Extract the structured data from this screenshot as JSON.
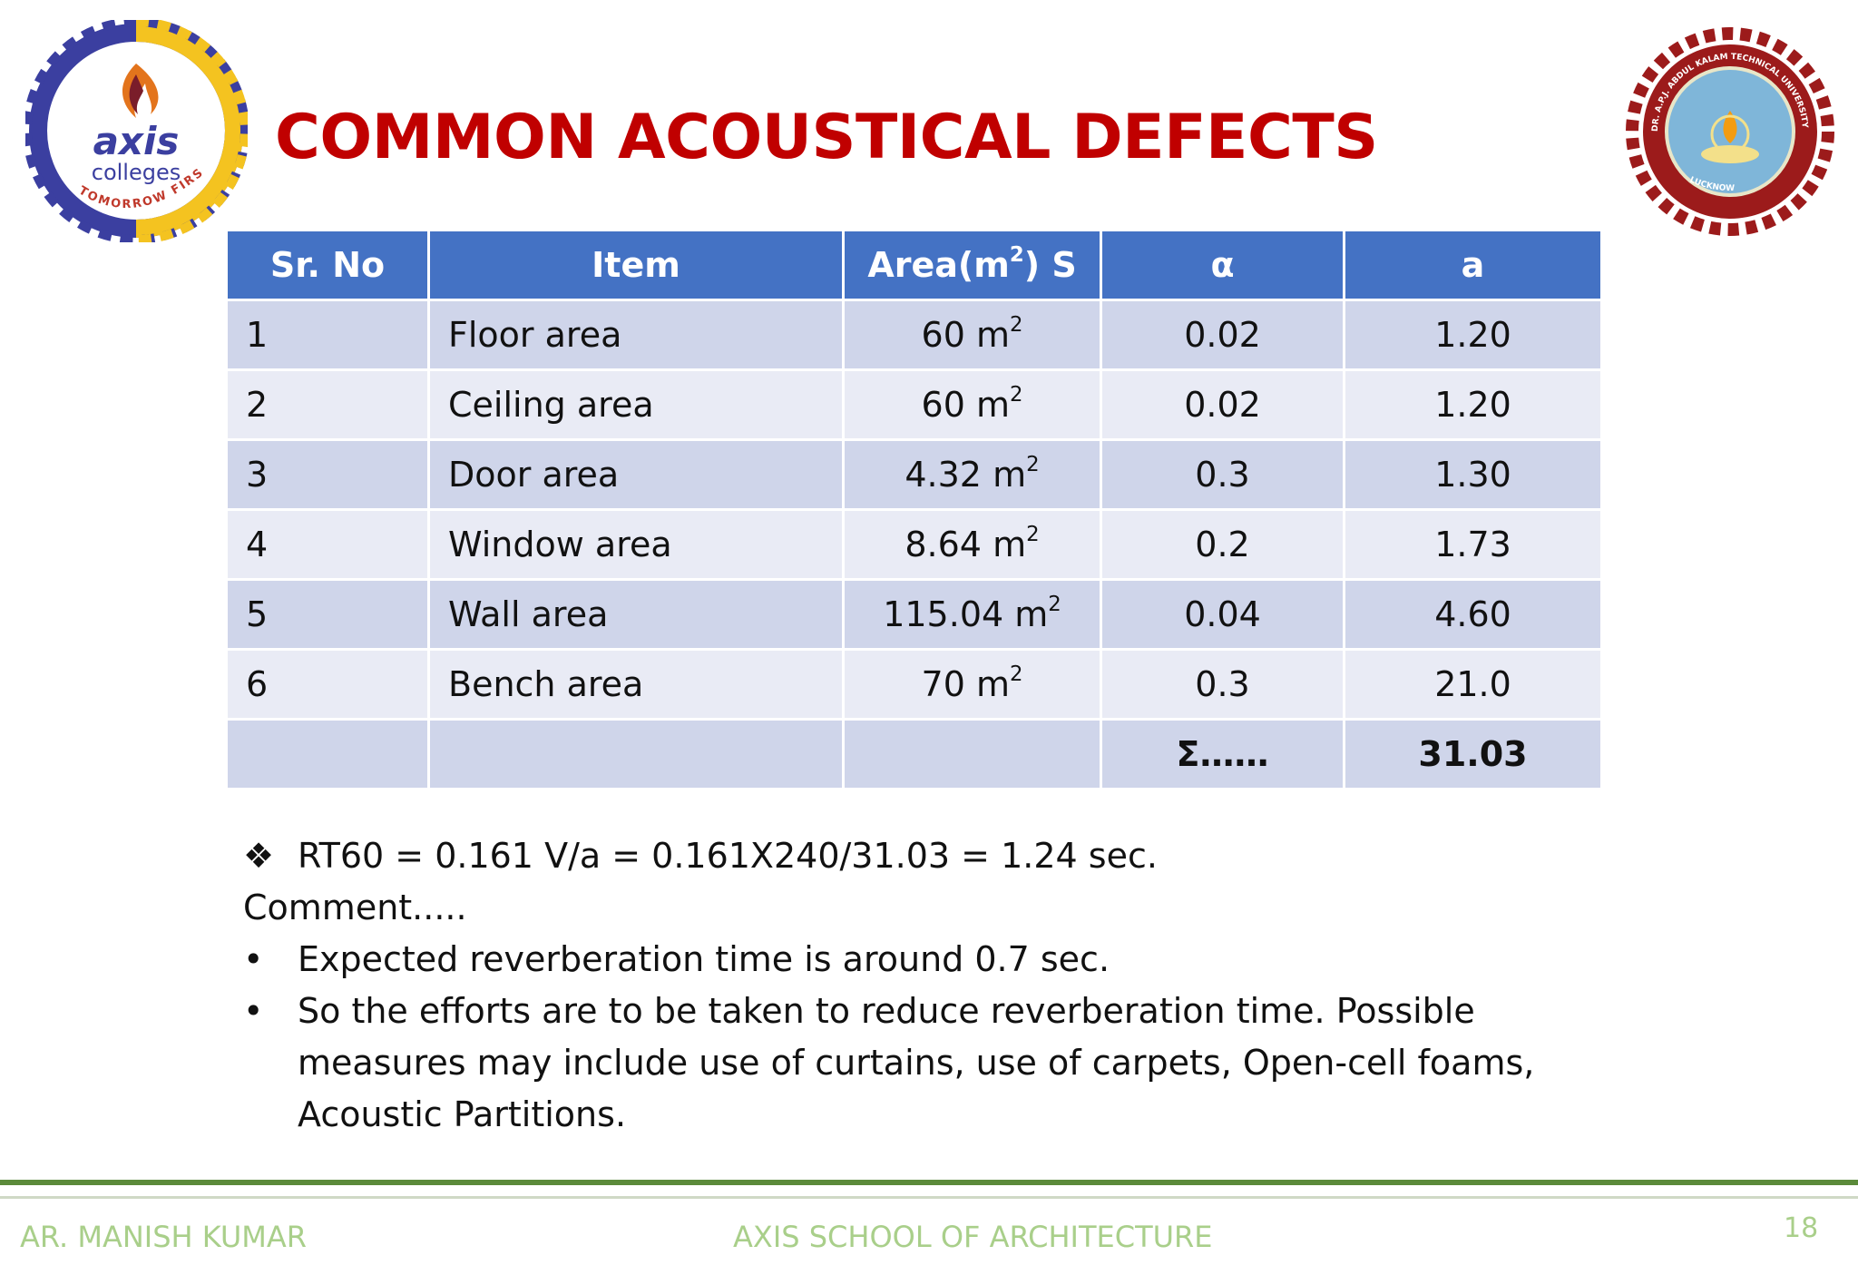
{
  "logos": {
    "left_name": "axis",
    "left_sub": "colleges",
    "left_tagline": "TOMORROW FIRST",
    "right_top_text": "DR. A.P.J. ABDUL KALAM TECHNICAL UNIVERSITY UTTAR PRADESH",
    "right_bottom_text": "LUCKNOW",
    "colors": {
      "brand_blue": "#3b3fa0",
      "brand_yellow": "#f4c320",
      "seal_red": "#9c1b1b"
    }
  },
  "title": "COMMON ACOUSTICAL DEFECTS",
  "table": {
    "headers": {
      "sr": "Sr. No",
      "item": "Item",
      "area_prefix": "Area(m",
      "area_sup": "2",
      "area_suffix": ") S",
      "alpha": "α",
      "a": "a"
    },
    "rows": [
      {
        "sr": "1",
        "item": "Floor area",
        "area": "60 m",
        "unit_sup": "2",
        "alpha": "0.02",
        "a": "1.20"
      },
      {
        "sr": "2",
        "item": "Ceiling area",
        "area": "60 m",
        "unit_sup": "2",
        "alpha": "0.02",
        "a": "1.20"
      },
      {
        "sr": "3",
        "item": "Door area",
        "area": "4.32 m",
        "unit_sup": "2",
        "alpha": "0.3",
        "a": "1.30"
      },
      {
        "sr": "4",
        "item": "Window area",
        "area": "8.64 m",
        "unit_sup": "2",
        "alpha": "0.2",
        "a": "1.73"
      },
      {
        "sr": "5",
        "item": "Wall area",
        "area": "115.04 m",
        "unit_sup": "2",
        "alpha": "0.04",
        "a": "4.60"
      },
      {
        "sr": "6",
        "item": "Bench area",
        "area": "70 m",
        "unit_sup": "2",
        "alpha": "0.3",
        "a": "21.0"
      }
    ],
    "sum_label": "Σ……",
    "sum_value": "31.03",
    "colors": {
      "header": "#4472c4",
      "row_odd": "#cfd5ea",
      "row_even": "#e9ebf5"
    }
  },
  "notes": {
    "formula_marker": "❖",
    "formula": "RT60 = 0.161 V/a = 0.161X240/31.03 = 1.24 sec.",
    "comment_label": "Comment.....",
    "bullet_marker": "•",
    "bullets": [
      "Expected reverberation time is around 0.7 sec.",
      "So the efforts are to be taken to reduce reverberation time. Possible measures may include use of curtains, use of carpets, Open-cell foams, Acoustic Partitions."
    ]
  },
  "footer": {
    "author": "AR. MANISH KUMAR",
    "school": "AXIS SCHOOL OF ARCHITECTURE",
    "page": "18",
    "color": "#a9cf8a"
  }
}
